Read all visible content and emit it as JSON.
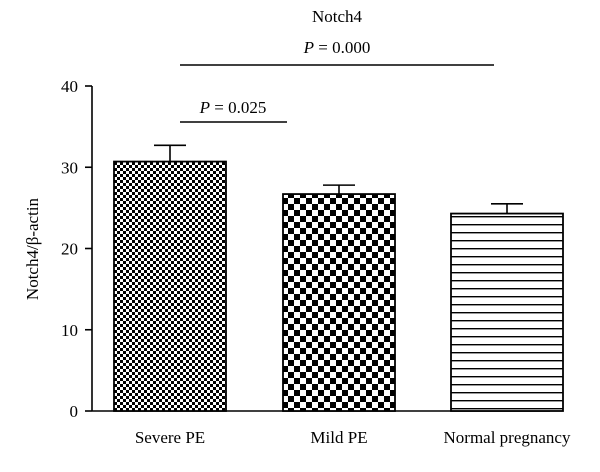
{
  "chart_data": {
    "type": "bar",
    "title": "Notch4",
    "ylabel": "Notch4/β-actin",
    "xlabel": "",
    "ylim": [
      0,
      40
    ],
    "yticks": [
      0,
      10,
      20,
      30,
      40
    ],
    "grid": false,
    "categories": [
      "Severe PE",
      "Mild PE",
      "Normal pregnancy"
    ],
    "values": [
      30.7,
      26.7,
      24.3
    ],
    "errors": [
      2.0,
      1.1,
      1.2
    ],
    "patterns": [
      "fine-checker",
      "coarse-checker",
      "horizontal-stripes"
    ],
    "annotations": [
      {
        "label": "P = 0.025",
        "p_letter": "P",
        "p_rest": " = 0.025",
        "from": "Severe PE",
        "to": "Mild PE",
        "scope": "pairwise"
      },
      {
        "label": "P = 0.000",
        "p_letter": "P",
        "p_rest": " = 0.000",
        "from": "Severe PE",
        "to": "Normal pregnancy",
        "scope": "overall"
      }
    ]
  }
}
